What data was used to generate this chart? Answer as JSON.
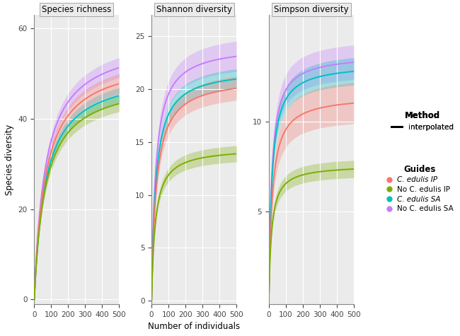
{
  "title_sr": "Species richness",
  "title_sh": "Shannon diversity",
  "title_si": "Simpson diversity",
  "xlabel": "Number of individuals",
  "ylabel": "Species diversity",
  "colors": {
    "C_edulis_IP": "#F8766D",
    "No_C_edulis_IP": "#7CAE00",
    "C_edulis_SA": "#00BFC4",
    "No_C_edulis_SA": "#C77CFF"
  },
  "fill_alpha": 0.3,
  "bg_color": "#EBEBEB",
  "grid_color": "#FFFFFF",
  "sr": {
    "C_edulis_IP": {
      "asym": 54.0,
      "rate": 65,
      "ci": 2.5
    },
    "No_C_edulis_IP": {
      "asym": 49.0,
      "rate": 65,
      "ci": 2.0
    },
    "C_edulis_SA": {
      "asym": 51.0,
      "rate": 65,
      "ci": 2.0
    },
    "No_C_edulis_SA": {
      "asym": 58.0,
      "rate": 65,
      "ci": 2.5
    },
    "yticks": [
      0,
      20,
      40,
      60
    ],
    "ylim": [
      -1,
      63
    ]
  },
  "sh": {
    "C_edulis_IP": {
      "asym": 21.2,
      "rate": 28,
      "ci": 1.2
    },
    "No_C_edulis_IP": {
      "asym": 14.5,
      "rate": 22,
      "ci": 0.8
    },
    "C_edulis_SA": {
      "asym": 22.0,
      "rate": 25,
      "ci": 1.0
    },
    "No_C_edulis_SA": {
      "asym": 24.2,
      "rate": 24,
      "ci": 1.5
    },
    "yticks": [
      0,
      5,
      10,
      15,
      20,
      25
    ],
    "ylim": [
      -0.3,
      27
    ]
  },
  "si": {
    "C_edulis_IP": {
      "asym": 11.5,
      "rate": 20,
      "ci": 1.2
    },
    "No_C_edulis_IP": {
      "asym": 7.6,
      "rate": 16,
      "ci": 0.5
    },
    "C_edulis_SA": {
      "asym": 13.3,
      "rate": 18,
      "ci": 0.8
    },
    "No_C_edulis_SA": {
      "asym": 13.8,
      "rate": 17,
      "ci": 1.0
    },
    "yticks": [
      5,
      10
    ],
    "ylim": [
      -0.2,
      16
    ]
  },
  "legend_labels": [
    "C. edulis IP",
    "No C. edulis IP",
    "C. edulis SA",
    "No C. edulis SA"
  ],
  "legend_keys": [
    "C_edulis_IP",
    "No_C_edulis_IP",
    "C_edulis_SA",
    "No_C_edulis_SA"
  ],
  "panel_titles": [
    "Species richness",
    "Shannon diversity",
    "Simpson diversity"
  ]
}
